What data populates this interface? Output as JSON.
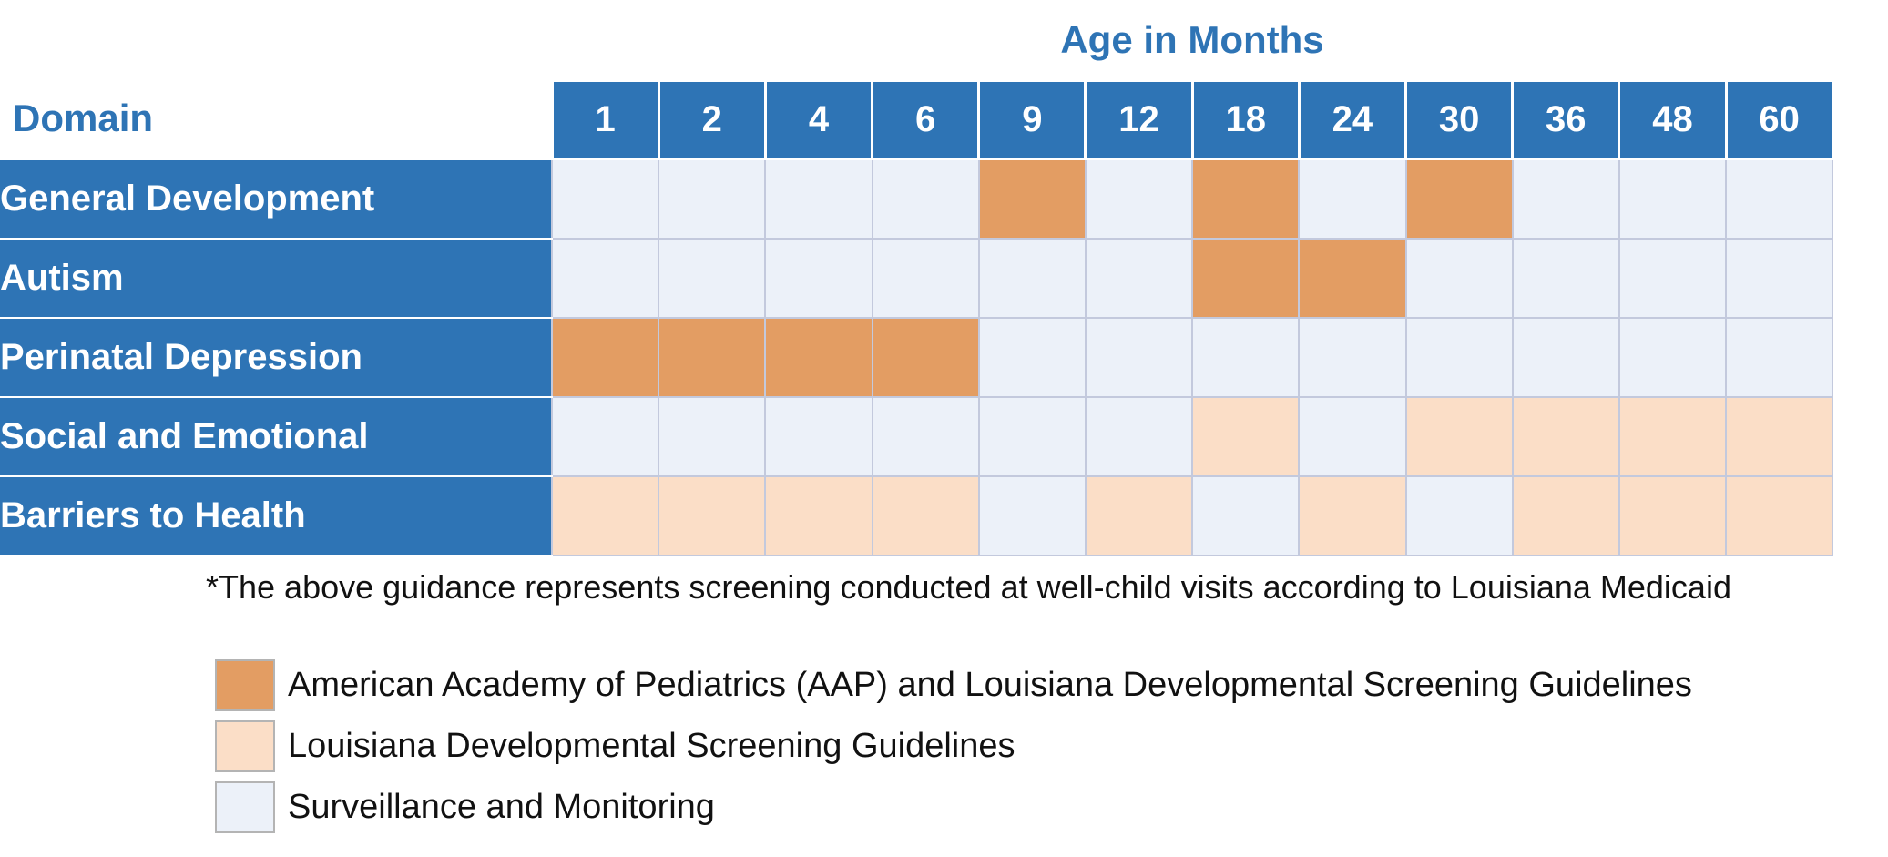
{
  "chart_data": {
    "type": "table",
    "title": "Age in Months",
    "row_header": "Domain",
    "columns": [
      "1",
      "2",
      "4",
      "6",
      "9",
      "12",
      "18",
      "24",
      "30",
      "36",
      "48",
      "60"
    ],
    "rows": [
      {
        "label": "General Development",
        "values": [
          "S",
          "S",
          "S",
          "S",
          "A",
          "S",
          "A",
          "S",
          "A",
          "S",
          "S",
          "S"
        ]
      },
      {
        "label": "Autism",
        "values": [
          "S",
          "S",
          "S",
          "S",
          "S",
          "S",
          "A",
          "A",
          "S",
          "S",
          "S",
          "S"
        ]
      },
      {
        "label": "Perinatal Depression",
        "values": [
          "A",
          "A",
          "A",
          "A",
          "S",
          "S",
          "S",
          "S",
          "S",
          "S",
          "S",
          "S"
        ]
      },
      {
        "label": "Social and Emotional",
        "values": [
          "S",
          "S",
          "S",
          "S",
          "S",
          "S",
          "L",
          "S",
          "L",
          "L",
          "L",
          "L"
        ]
      },
      {
        "label": "Barriers to Health",
        "values": [
          "L",
          "L",
          "L",
          "L",
          "S",
          "L",
          "S",
          "L",
          "S",
          "L",
          "L",
          "L"
        ]
      }
    ],
    "legend": [
      {
        "key": "A",
        "label": "American Academy of Pediatrics (AAP) and Louisiana Developmental Screening Guidelines",
        "color": "#e39d63"
      },
      {
        "key": "L",
        "label": "Louisiana Developmental Screening Guidelines",
        "color": "#fbdec7"
      },
      {
        "key": "S",
        "label": "Surveillance and Monitoring",
        "color": "#ecf1f9"
      }
    ],
    "footnote": "*The above guidance represents screening conducted at well-child visits according to Louisiana Medicaid"
  },
  "colors": {
    "header_blue": "#2e74b5",
    "grid_line": "#c3c9dd"
  }
}
